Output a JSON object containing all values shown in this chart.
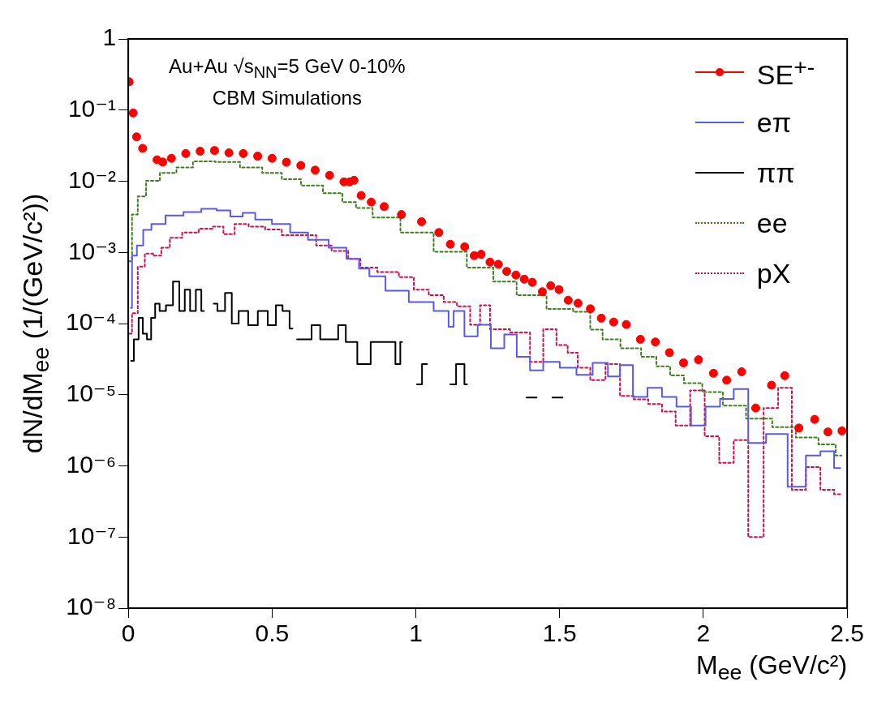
{
  "chart_data": {
    "type": "step",
    "xlabel": "M$_{ee}$ (GeV/c²)",
    "ylabel": "dN/dM$_{ee}$ (1/(GeV/c²))",
    "annotations": [
      "Au+Au √s$_{NN}$=5 GeV 0-10%",
      "CBM Simulations"
    ],
    "log": "y",
    "legend": "top right",
    "xlim": [
      0,
      2.5
    ],
    "xticks": [
      0,
      0.5,
      1,
      1.5,
      2,
      2.5
    ],
    "ylim": [
      1e-08,
      1
    ],
    "yticks": [
      {
        "value": 1e-08,
        "label": "10⁻⁸"
      },
      {
        "value": 1e-07,
        "label": "10⁻⁷"
      },
      {
        "value": 1e-06,
        "label": "10⁻⁶"
      },
      {
        "value": 1e-05,
        "label": "10⁻⁵"
      },
      {
        "value": 0.0001,
        "label": "10⁻⁴"
      },
      {
        "value": 0.001,
        "label": "10⁻³"
      },
      {
        "value": 0.01,
        "label": "10⁻²"
      },
      {
        "value": 0.1,
        "label": "10⁻¹"
      },
      1
    ],
    "series": [
      {
        "name": "SE$^{+-}$",
        "type": "scatter",
        "marker": "circle",
        "color": "#ff0000",
        "x": [
          0.003,
          0.017,
          0.029,
          0.05,
          0.1,
          0.12,
          0.15,
          0.2,
          0.25,
          0.3,
          0.35,
          0.4,
          0.45,
          0.5,
          0.55,
          0.6,
          0.65,
          0.7,
          0.75,
          0.77,
          0.785,
          0.81,
          0.845,
          0.89,
          0.95,
          1.02,
          1.08,
          1.12,
          1.17,
          1.203,
          1.227,
          1.258,
          1.287,
          1.316,
          1.348,
          1.377,
          1.405,
          1.44,
          1.469,
          1.498,
          1.53,
          1.564,
          1.607,
          1.645,
          1.688,
          1.732,
          1.781,
          1.833,
          1.882,
          1.931,
          1.983,
          2.035,
          2.081,
          2.133,
          2.182,
          2.237,
          2.283,
          2.332,
          2.387,
          2.433,
          2.482
        ],
        "values": [
          0.25,
          0.091,
          0.042,
          0.029,
          0.02,
          0.0186,
          0.021,
          0.0245,
          0.0264,
          0.027,
          0.0251,
          0.0245,
          0.0225,
          0.021,
          0.0185,
          0.0167,
          0.0143,
          0.0121,
          0.0098,
          0.0098,
          0.0103,
          0.0063,
          0.0051,
          0.0044,
          0.0034,
          0.0027,
          0.0019,
          0.0013,
          0.0012,
          0.0009,
          0.00094,
          0.00073,
          0.00068,
          0.00054,
          0.00048,
          0.00042,
          0.00038,
          0.00028,
          0.00034,
          0.0003,
          0.000213,
          0.000193,
          0.000161,
          0.000119,
          0.000105,
          9.7e-05,
          6e-05,
          5.5e-05,
          3.9e-05,
          2.8e-05,
          3.1e-05,
          2e-05,
          1.6e-05,
          2.1e-05,
          6.5e-06,
          1.36e-05,
          1.85e-05,
          3.4e-06,
          4.5e-06,
          3e-06,
          3.1e-06
        ]
      },
      {
        "name": "eπ",
        "line_style": "solid",
        "color": "#5a5ae6",
        "x": [
          0.009,
          0.017,
          0.043,
          0.061,
          0.1,
          0.159,
          0.225,
          0.283,
          0.332,
          0.378,
          0.418,
          0.465,
          0.534,
          0.592,
          0.658,
          0.736,
          0.782,
          0.823,
          0.854,
          0.935,
          1.016,
          1.108,
          1.12,
          1.143,
          1.195,
          1.235,
          1.287,
          1.328,
          1.374,
          1.42,
          1.466,
          1.535,
          1.582,
          1.648,
          1.688,
          1.732,
          1.778,
          1.833,
          1.879,
          1.934,
          1.98,
          2.035,
          2.081,
          2.13,
          2.182,
          2.254,
          2.332,
          2.381,
          2.433,
          2.476
        ],
        "values": [
          0.000166,
          0.0009,
          0.00125,
          0.00207,
          0.0025,
          0.0033,
          0.0037,
          0.0041,
          0.0039,
          0.0032,
          0.0036,
          0.0029,
          0.0025,
          0.0019,
          0.0015,
          0.00116,
          0.00081,
          0.00059,
          0.00046,
          0.00029,
          0.0002,
          0.00015,
          9e-05,
          0.00015,
          6.6e-05,
          9.6e-05,
          4.5e-05,
          7e-05,
          3.4e-05,
          2.2e-05,
          2.9e-05,
          2.4e-05,
          1.9e-05,
          2.8e-05,
          1.8e-05,
          2.6e-05,
          9.3e-06,
          1.25e-05,
          9.3e-06,
          6.8e-06,
          3.7e-06,
          6.8e-06,
          8.7e-06,
          1.2e-05,
          2.1e-06,
          2.8e-06,
          5.1e-07,
          1.4e-06,
          1.6e-06,
          9.3e-07
        ]
      },
      {
        "name": "ππ",
        "line_style": "solid",
        "color": "#000000",
        "x": [
          0.01,
          0.029,
          0.043,
          0.058,
          0.072,
          0.087,
          0.1,
          0.118,
          0.144,
          0.167,
          0.188,
          0.205,
          0.225,
          0.245,
          0.263,
          0.285,
          0.297,
          0.323,
          0.35,
          0.37,
          0.398,
          0.436,
          0.465,
          0.505,
          0.522,
          0.551,
          0.571,
          0.578,
          0.587,
          0.6,
          0.615,
          0.63,
          0.645,
          0.66,
          0.675,
          0.69,
          0.705,
          0.72,
          0.74,
          0.773,
          0.82,
          0.866,
          0.889,
          0.918,
          0.94,
          0.952,
          0.97,
          1.004,
          1.039,
          1.065,
          1.12,
          1.16,
          1.178,
          1.29,
          1.385,
          1.42,
          1.45,
          1.475,
          1.51
        ],
        "values": [
          3e-05,
          6e-05,
          0.00012,
          7.2e-05,
          6e-05,
          0.00012,
          0.00019,
          0.00015,
          0.00018,
          0.00039,
          0.00015,
          0.0003,
          0.00015,
          0.0003,
          0.00015,
          null,
          0.00019,
          0.00015,
          0.00027,
          0.0001,
          0.00015,
          9.5e-05,
          0.00015,
          9.5e-05,
          0.00018,
          0.00015,
          8.5e-05,
          null,
          6e-05,
          6e-05,
          6e-05,
          6e-05,
          9.5e-05,
          9.5e-05,
          6e-05,
          6e-05,
          6e-05,
          6e-05,
          9.5e-05,
          5.5e-05,
          2.7e-05,
          5.5e-05,
          5.5e-05,
          5.5e-05,
          2.7e-05,
          5.5e-05,
          null,
          1.4e-05,
          2.7e-05,
          null,
          1.4e-05,
          2.7e-05,
          1.4e-05,
          null,
          9.1e-06,
          9.1e-06,
          null,
          9.1e-06,
          9.1e-06
        ]
      },
      {
        "name": "ee",
        "line_style": "dotted",
        "color": "#3f7f1f",
        "x": [
          0.003,
          0.023,
          0.043,
          0.081,
          0.139,
          0.196,
          0.254,
          0.35,
          0.427,
          0.505,
          0.563,
          0.638,
          0.716,
          0.773,
          0.811,
          0.889,
          1.004,
          1.12,
          1.235,
          1.304,
          1.397,
          1.512,
          1.582,
          1.631,
          1.668,
          1.755,
          1.812,
          1.861,
          1.908,
          1.957,
          2.035,
          2.101,
          2.196,
          2.283,
          2.36,
          2.44,
          2.48
        ],
        "values": [
          0.00075,
          0.0034,
          0.0061,
          0.0101,
          0.0131,
          0.0156,
          0.019,
          0.0186,
          0.0156,
          0.0131,
          0.0107,
          0.0087,
          0.0068,
          0.0051,
          0.0042,
          0.0031,
          0.0019,
          0.00102,
          0.00061,
          0.00039,
          0.00025,
          0.00016,
          0.000146,
          8.2e-05,
          6e-05,
          4.5e-05,
          3.4e-05,
          2.5e-05,
          1.86e-05,
          1.45e-05,
          1.09e-05,
          7e-06,
          4.6e-06,
          3.5e-06,
          2.5e-06,
          2e-06,
          1.4e-06
        ]
      },
      {
        "name": "pX",
        "line_style": "dotted",
        "color": "#d0104c",
        "x": [
          0.003,
          0.023,
          0.043,
          0.072,
          0.1,
          0.13,
          0.159,
          0.216,
          0.274,
          0.312,
          0.35,
          0.39,
          0.447,
          0.505,
          0.563,
          0.629,
          0.678,
          0.736,
          0.794,
          0.82,
          0.912,
          0.97,
          1.016,
          1.074,
          1.12,
          1.166,
          1.212,
          1.235,
          1.281,
          1.374,
          1.42,
          1.466,
          1.512,
          1.544,
          1.582,
          1.631,
          1.688,
          1.732,
          1.784,
          1.833,
          1.879,
          1.928,
          1.98,
          2.029,
          2.081,
          2.13,
          2.182,
          2.237,
          2.283,
          2.332,
          2.381,
          2.433,
          2.476
        ],
        "values": [
          7.2e-05,
          0.00014,
          0.00063,
          0.00096,
          0.0009,
          0.00116,
          0.0016,
          0.0019,
          0.00215,
          0.0023,
          0.0018,
          0.0025,
          0.0023,
          0.0021,
          0.00175,
          0.00175,
          0.00125,
          0.00105,
          0.00081,
          0.00061,
          0.00053,
          0.00045,
          0.0003,
          0.00025,
          0.0002,
          0.000175,
          9.6e-05,
          0.00018,
          8.3e-05,
          7.5e-05,
          2.9e-05,
          8.3e-05,
          5e-05,
          3.9e-05,
          2.4e-05,
          1.6e-05,
          2.7e-05,
          9.6e-06,
          8.6e-06,
          7.4e-06,
          5.8e-06,
          3.7e-06,
          1.15e-05,
          2.6e-06,
          1.1e-06,
          2.3e-06,
          1e-07,
          6.5e-06,
          1.25e-05,
          4.6e-07,
          9.6e-07,
          4.6e-07,
          4e-07
        ]
      }
    ]
  }
}
